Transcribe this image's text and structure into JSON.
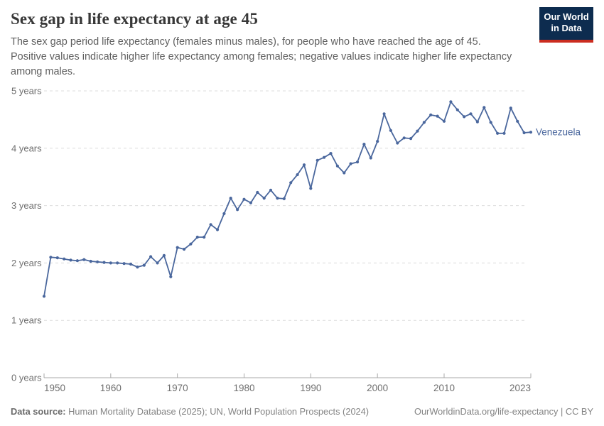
{
  "header": {
    "title": "Sex gap in life expectancy at age 45",
    "subtitle": "The sex gap period life expectancy (females minus males), for people who have reached the age of 45. Positive values indicate higher life expectancy among females; negative values indicate higher life expectancy among males.",
    "logo": {
      "line1": "Our World",
      "line2": "in Data"
    }
  },
  "colors": {
    "logo_navy": "#0d2c4f",
    "logo_red": "#cb2d20",
    "line": "#4a679d",
    "grid": "#dcdcdc",
    "axis": "#a8a8a8",
    "tick_text": "#6e6e6e"
  },
  "chart_data": {
    "type": "line",
    "title": "Sex gap in life expectancy at age 45",
    "xlabel": "",
    "ylabel": "",
    "x_range": [
      1950,
      2023
    ],
    "y_range": [
      0,
      5
    ],
    "x_ticks": [
      1950,
      1960,
      1970,
      1980,
      1990,
      2000,
      2010,
      2023
    ],
    "y_ticks": [
      {
        "value": 0,
        "label": "0 years"
      },
      {
        "value": 1,
        "label": "1 years"
      },
      {
        "value": 2,
        "label": "2 years"
      },
      {
        "value": 3,
        "label": "3 years"
      },
      {
        "value": 4,
        "label": "4 years"
      },
      {
        "value": 5,
        "label": "5 years"
      }
    ],
    "grid": "horizontal-dashed",
    "legend_position": "end-of-line-label",
    "line_color": "#4a679d",
    "series": [
      {
        "name": "Venezuela",
        "x": [
          1950,
          1951,
          1952,
          1953,
          1954,
          1955,
          1956,
          1957,
          1958,
          1959,
          1960,
          1961,
          1962,
          1963,
          1964,
          1965,
          1966,
          1967,
          1968,
          1969,
          1970,
          1971,
          1972,
          1973,
          1974,
          1975,
          1976,
          1977,
          1978,
          1979,
          1980,
          1981,
          1982,
          1983,
          1984,
          1985,
          1986,
          1987,
          1988,
          1989,
          1990,
          1991,
          1992,
          1993,
          1994,
          1995,
          1996,
          1997,
          1998,
          1999,
          2000,
          2001,
          2002,
          2003,
          2004,
          2005,
          2006,
          2007,
          2008,
          2009,
          2010,
          2011,
          2012,
          2013,
          2014,
          2015,
          2016,
          2017,
          2018,
          2019,
          2020,
          2021,
          2022,
          2023
        ],
        "values": [
          1.42,
          2.1,
          2.09,
          2.07,
          2.05,
          2.04,
          2.06,
          2.03,
          2.02,
          2.01,
          2.0,
          2.0,
          1.99,
          1.98,
          1.93,
          1.96,
          2.11,
          2.0,
          2.13,
          1.76,
          2.27,
          2.24,
          2.33,
          2.45,
          2.45,
          2.67,
          2.58,
          2.86,
          3.13,
          2.93,
          3.11,
          3.05,
          3.23,
          3.13,
          3.27,
          3.13,
          3.12,
          3.4,
          3.54,
          3.71,
          3.3,
          3.79,
          3.84,
          3.91,
          3.69,
          3.57,
          3.73,
          3.76,
          4.07,
          3.83,
          4.12,
          4.6,
          4.31,
          4.09,
          4.18,
          4.17,
          4.3,
          4.45,
          4.58,
          4.56,
          4.47,
          4.81,
          4.67,
          4.55,
          4.6,
          4.46,
          4.71,
          4.45,
          4.26,
          4.26,
          4.7,
          4.47,
          4.27,
          4.28
        ]
      }
    ]
  },
  "footer": {
    "source_label": "Data source:",
    "source_text": " Human Mortality Database (2025); UN, World Population Prospects (2024)",
    "url_license": "OurWorldinData.org/life-expectancy | CC BY"
  }
}
